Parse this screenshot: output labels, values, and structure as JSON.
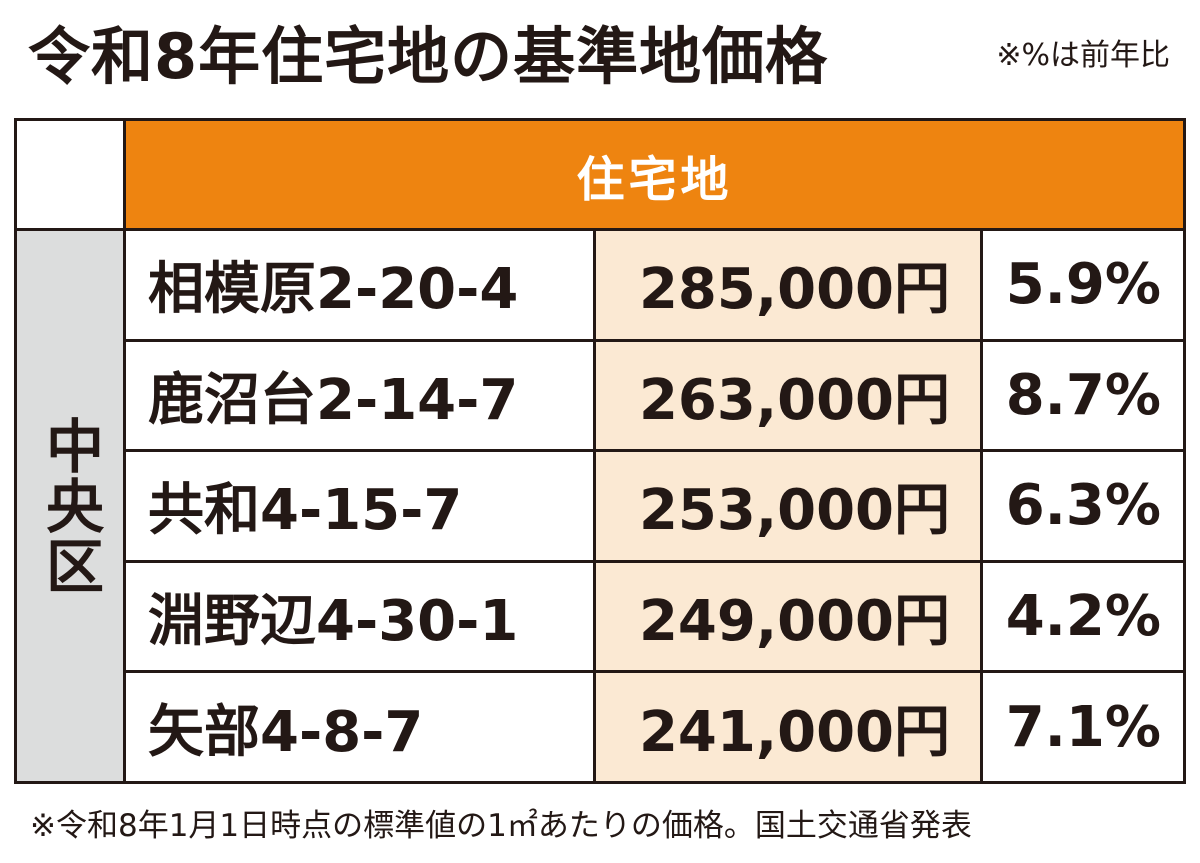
{
  "title": "令和8年住宅地の基準地価格",
  "note": "※%は前年比",
  "table": {
    "header": "住宅地",
    "ward": "中央区",
    "rows": [
      {
        "address": "相模原2-20-4",
        "price": "285,000円",
        "change": "5.9%"
      },
      {
        "address": "鹿沼台2-14-7",
        "price": "263,000円",
        "change": "8.7%"
      },
      {
        "address": "共和4-15-7",
        "price": "253,000円",
        "change": "6.3%"
      },
      {
        "address": "淵野辺4-30-1",
        "price": "249,000円",
        "change": "4.2%"
      },
      {
        "address": "矢部4-8-7",
        "price": "241,000円",
        "change": "7.1%"
      }
    ]
  },
  "footer": "※令和8年1月1日時点の標準値の1㎡あたりの価格。国土交通省発表",
  "colors": {
    "header_bg": "#ee8410",
    "ward_bg": "#dcdddd",
    "price_bg": "#fbe9d3",
    "text": "#231815"
  }
}
